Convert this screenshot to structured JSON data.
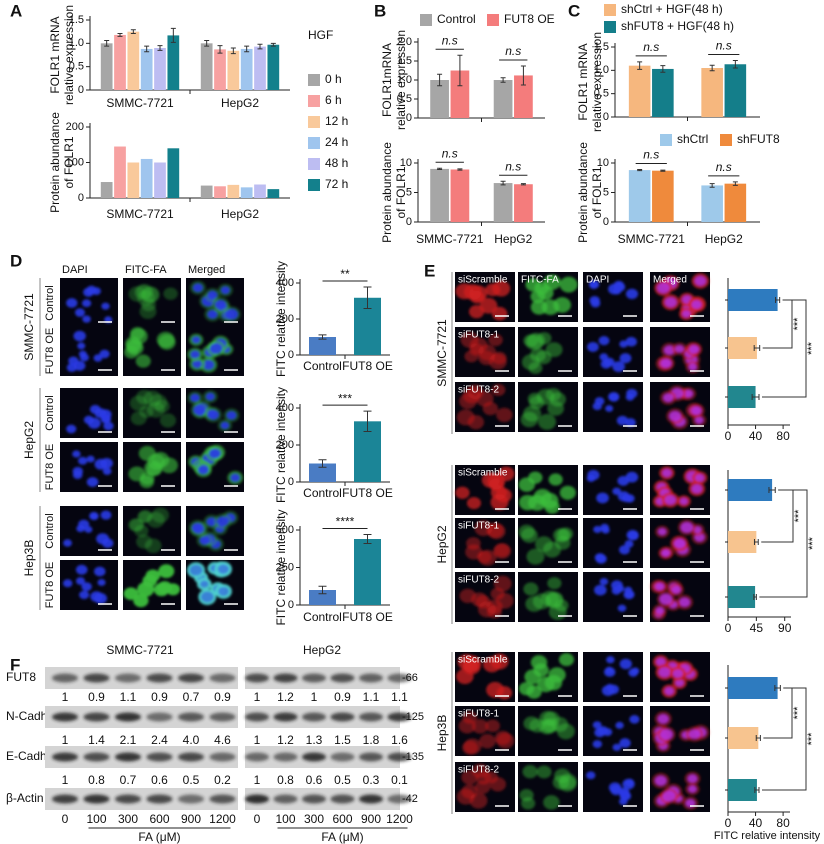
{
  "panels": [
    "A",
    "B",
    "C",
    "D",
    "E",
    "F"
  ],
  "chart_data": [
    {
      "type": "bar",
      "ylabel": [
        "FOLR1 mRNA",
        "relative expression"
      ],
      "categories": [
        "SMMC-7721",
        "HepG2"
      ],
      "legend_title": "HGF",
      "series": [
        {
          "name": "0 h",
          "color": "#a6a6a6",
          "values": [
            1.0,
            1.0
          ],
          "errors": [
            0.06,
            0.06
          ]
        },
        {
          "name": "6 h",
          "color": "#f7a1a1",
          "values": [
            1.18,
            0.87
          ],
          "errors": [
            0.03,
            0.08
          ]
        },
        {
          "name": "12 h",
          "color": "#f9c99b",
          "values": [
            1.25,
            0.84
          ],
          "errors": [
            0.04,
            0.06
          ]
        },
        {
          "name": "24 h",
          "color": "#9fc5ee",
          "values": [
            0.88,
            0.88
          ],
          "errors": [
            0.06,
            0.06
          ]
        },
        {
          "name": "48 h",
          "color": "#bdbdf2",
          "values": [
            0.9,
            0.93
          ],
          "errors": [
            0.05,
            0.05
          ]
        },
        {
          "name": "72 h",
          "color": "#13808c",
          "values": [
            1.17,
            0.97
          ],
          "errors": [
            0.15,
            0.03
          ]
        }
      ],
      "ylim": [
        0,
        1.5
      ],
      "yticks": [
        0,
        0.5,
        {
          "value": 1,
          "label": "1.0"
        },
        1.5
      ]
    },
    {
      "type": "bar",
      "ylabel": [
        "Protein abundance",
        "of FOLR1"
      ],
      "categories": [
        "SMMC-7721",
        "HepG2"
      ],
      "series": [
        {
          "color": "#a6a6a6",
          "values": [
            45,
            35
          ]
        },
        {
          "color": "#f7a1a1",
          "values": [
            145,
            33
          ]
        },
        {
          "color": "#f9c99b",
          "values": [
            100,
            37
          ]
        },
        {
          "color": "#9fc5ee",
          "values": [
            110,
            30
          ]
        },
        {
          "color": "#bdbdf2",
          "values": [
            100,
            38
          ]
        },
        {
          "color": "#13808c",
          "values": [
            140,
            25
          ]
        }
      ],
      "ylim": [
        0,
        200
      ],
      "yticks": [
        0,
        100,
        200
      ]
    },
    {
      "type": "bar",
      "ylabel": [
        "FOLR1mRNA",
        "relative expression"
      ],
      "categories": [
        null,
        null
      ],
      "series": [
        {
          "name": "Control",
          "color": "#a6a6a6",
          "values": [
            1.0,
            1.0
          ],
          "errors": [
            0.15,
            0.06
          ]
        },
        {
          "name": "FUT8 OE",
          "color": "#f47c7c",
          "values": [
            1.25,
            1.12
          ],
          "errors": [
            0.4,
            0.25
          ]
        }
      ],
      "annotations": [
        "n.s",
        "n.s"
      ],
      "ylim": [
        0,
        2
      ],
      "yticks": [
        0,
        0.5,
        {
          "value": 1,
          "label": "1.0"
        },
        1.5,
        {
          "value": 2,
          "label": "2.0"
        }
      ]
    },
    {
      "type": "bar",
      "ylabel": [
        "Protein abundance",
        "of FOLR1"
      ],
      "categories": [
        "SMMC-7721",
        "HepG2"
      ],
      "series": [
        {
          "color": "#a6a6a6",
          "values": [
            9.0,
            6.6
          ],
          "errors": [
            0.1,
            0.3
          ]
        },
        {
          "color": "#f47c7c",
          "values": [
            8.9,
            6.4
          ],
          "errors": [
            0.1,
            0.1
          ]
        }
      ],
      "annotations": [
        "n.s",
        "n.s"
      ],
      "ylim": [
        0,
        10
      ],
      "yticks": [
        0,
        5,
        10
      ]
    },
    {
      "type": "bar",
      "ylabel": [
        "FOLR1 mRNA",
        "relative expression"
      ],
      "categories": [
        null,
        null
      ],
      "series": [
        {
          "name": "shCtrl + HGF(48 h)",
          "color": "#f6b77e",
          "values": [
            1.1,
            1.05
          ],
          "errors": [
            0.08,
            0.06
          ]
        },
        {
          "name": "shFUT8 + HGF(48 h)",
          "color": "#147e8a",
          "values": [
            1.03,
            1.13
          ],
          "errors": [
            0.07,
            0.08
          ]
        }
      ],
      "annotations": [
        "n.s",
        "n.s"
      ],
      "ylim": [
        0,
        1.5
      ],
      "yticks": [
        0,
        0.5,
        {
          "value": 1,
          "label": "1.0"
        },
        1.5
      ]
    },
    {
      "type": "bar",
      "ylabel": [
        "Protein abundance",
        "of FOLR1"
      ],
      "categories": [
        "SMMC-7721",
        "HepG2"
      ],
      "series": [
        {
          "name": "shCtrl",
          "color": "#9ec9ea",
          "values": [
            8.8,
            6.2
          ],
          "errors": [
            0.1,
            0.3
          ]
        },
        {
          "name": "shFUT8",
          "color": "#ef8a3c",
          "values": [
            8.7,
            6.5
          ],
          "errors": [
            0.1,
            0.3
          ]
        }
      ],
      "annotations": [
        "n.s",
        "n.s"
      ],
      "ylim": [
        0,
        10
      ],
      "yticks": [
        0,
        5,
        10
      ]
    },
    {
      "type": "bar",
      "ylabel": "FITC relative intensity",
      "categories": [
        "Control",
        "FUT8 OE"
      ],
      "values": [
        100,
        318
      ],
      "errors": [
        12,
        60
      ],
      "colors": [
        "#4a7cc4",
        "#1b8597"
      ],
      "annotations": [
        "**"
      ],
      "ylim": [
        0,
        400
      ],
      "yticks": [
        0,
        200,
        400
      ]
    },
    {
      "type": "bar",
      "ylabel": "FITC relative intensity",
      "categories": [
        "Control",
        "FUT8 OE"
      ],
      "values": [
        100,
        328
      ],
      "errors": [
        20,
        55
      ],
      "colors": [
        "#4a7cc4",
        "#1b8597"
      ],
      "annotations": [
        "***"
      ],
      "ylim": [
        0,
        400
      ],
      "yticks": [
        0,
        200,
        400
      ]
    },
    {
      "type": "bar",
      "ylabel": "FITC relative intensity",
      "categories": [
        "Control",
        "FUT8 OE"
      ],
      "values": [
        100,
        440
      ],
      "errors": [
        25,
        30
      ],
      "colors": [
        "#4a7cc4",
        "#1b8597"
      ],
      "annotations": [
        "****"
      ],
      "ylim": [
        0,
        500
      ],
      "yticks": [
        0,
        250,
        500
      ]
    },
    {
      "type": "barh",
      "categories": [
        "siScramble",
        "siFUT8-1",
        "siFUT8-2"
      ],
      "values": [
        72,
        42,
        40
      ],
      "errors": [
        3,
        4,
        5
      ],
      "colors": [
        "#2e7bbf",
        "#f7c48f",
        "#22878f"
      ],
      "annotations": [
        "***",
        "***"
      ],
      "xlim": [
        0,
        90
      ],
      "xticks": [
        0,
        40,
        80
      ]
    },
    {
      "type": "barh",
      "categories": [
        "siScramble",
        "siFUT8-1",
        "siFUT8-2"
      ],
      "values": [
        70,
        45,
        43
      ],
      "errors": [
        5,
        3,
        2
      ],
      "colors": [
        "#2e7bbf",
        "#f7c48f",
        "#22878f"
      ],
      "annotations": [
        "***",
        "***"
      ],
      "xlim": [
        0,
        100
      ],
      "xticks": [
        0,
        45,
        90
      ]
    },
    {
      "type": "barh",
      "categories": [
        "siScramble",
        "siFUT8-1",
        "siFUT8-2"
      ],
      "values": [
        72,
        44,
        42
      ],
      "errors": [
        4,
        3,
        3
      ],
      "colors": [
        "#2e7bbf",
        "#f7c48f",
        "#22878f"
      ],
      "annotations": [
        "***",
        "***"
      ],
      "xlim": [
        0,
        90
      ],
      "xticks": [
        0,
        40,
        80
      ],
      "xlabel": "FITC relative intensity"
    }
  ],
  "microscopy_d": {
    "columns": [
      "DAPI",
      "FITC-FA",
      "Merged"
    ],
    "cell_lines": [
      "SMMC-7721",
      "HepG2",
      "Hep3B"
    ]
  },
  "microscopy_e": {
    "columns": [
      "FITC-FA",
      "DAPI",
      "Merged"
    ],
    "cell_lines": [
      "SMMC-7721",
      "HepG2",
      "Hep3B"
    ]
  },
  "blot": {
    "cell_lines": [
      "SMMC-7721",
      "HepG2"
    ],
    "proteins": [
      {
        "name": "FUT8",
        "mw": "-66",
        "quant": [
          [
            "1",
            "0.9",
            "1.1",
            "0.9",
            "0.7",
            "0.9"
          ],
          [
            "1",
            "1.2",
            "1",
            "0.9",
            "1.1",
            "1.1"
          ]
        ]
      },
      {
        "name": "N-Cadherin",
        "mw": "-125",
        "quant": [
          [
            "1",
            "1.4",
            "2.1",
            "2.4",
            "4.0",
            "4.6"
          ],
          [
            "1",
            "1.2",
            "1.3",
            "1.5",
            "1.8",
            "1.6"
          ]
        ]
      },
      {
        "name": "E-Cadherin",
        "mw": "-135",
        "quant": [
          [
            "1",
            "0.8",
            "0.7",
            "0.6",
            "0.5",
            "0.2"
          ],
          [
            "1",
            "0.8",
            "0.6",
            "0.5",
            "0.3",
            "0.1"
          ]
        ]
      },
      {
        "name": "β-Actin",
        "mw": "-42"
      }
    ],
    "doses": [
      "0",
      "100",
      "300",
      "600",
      "900",
      "1200"
    ],
    "dose_label": "FA (μM)"
  }
}
